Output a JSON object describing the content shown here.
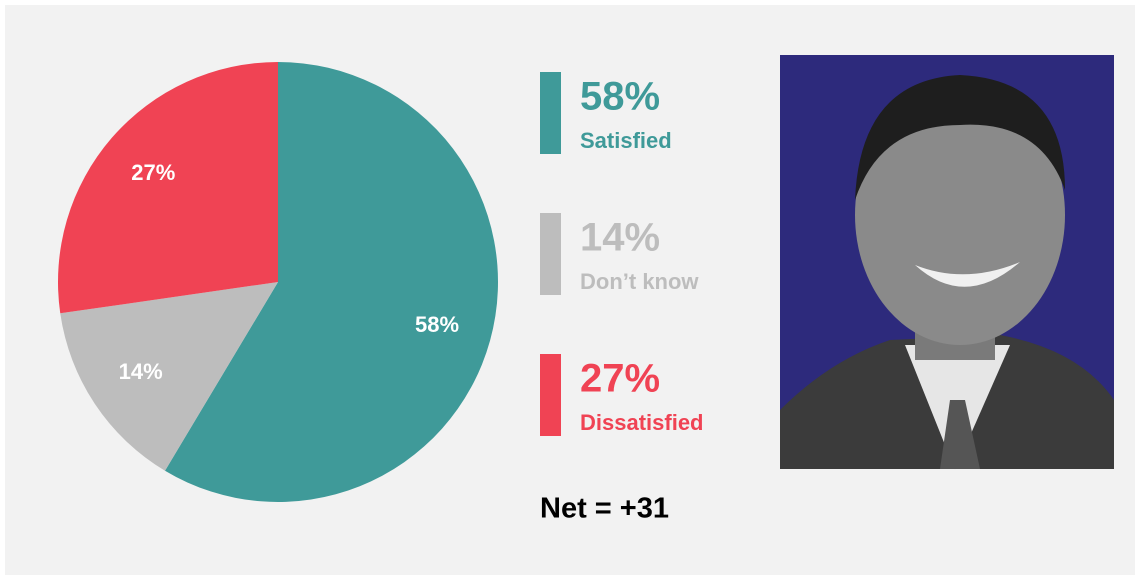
{
  "chart_data": {
    "type": "pie",
    "categories": [
      "Satisfied",
      "Don’t know",
      "Dissatisfied"
    ],
    "values": [
      58,
      14,
      27
    ],
    "value_labels": [
      "58%",
      "14%",
      "27%"
    ],
    "colors": [
      "#3f9a99",
      "#bdbdbd",
      "#f04354"
    ],
    "start_angle": "top",
    "direction": "clockwise",
    "annotation": "Net = +31"
  }
}
